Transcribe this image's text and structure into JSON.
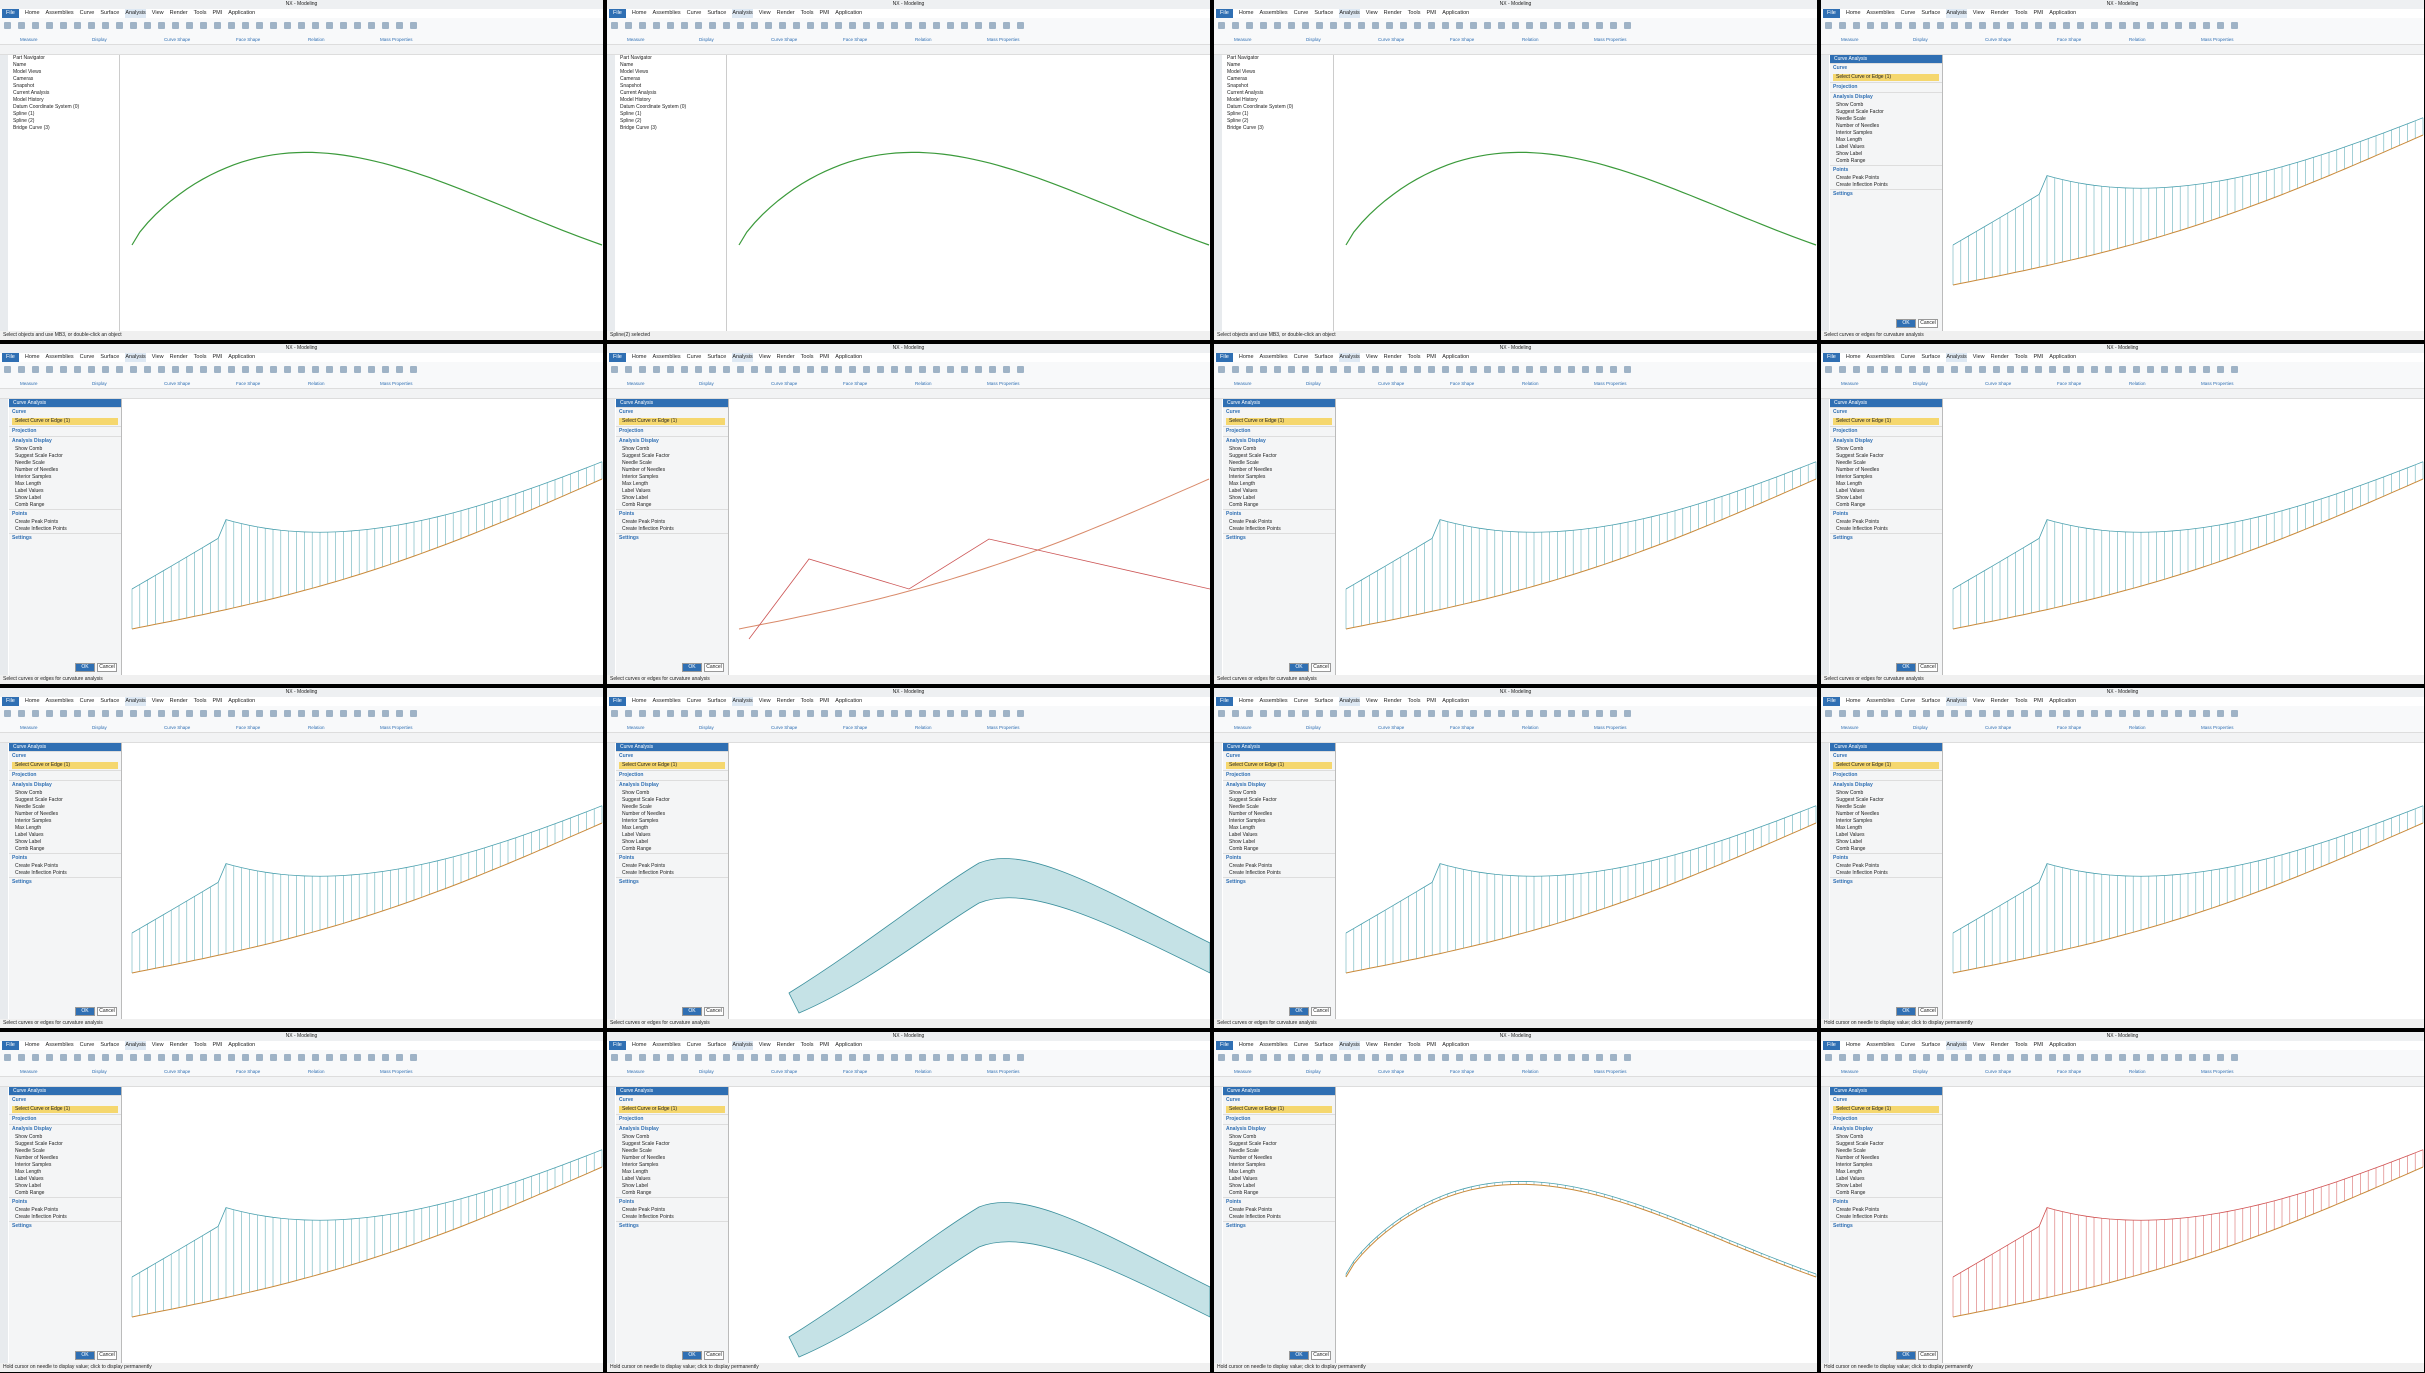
{
  "app_title": "NX - Modeling",
  "menu": [
    "File",
    "Home",
    "Assemblies",
    "Curve",
    "Surface",
    "Analysis",
    "View",
    "Render",
    "Tools",
    "PMI",
    "Application"
  ],
  "ribbon_groups": [
    "Measure",
    "Display",
    "Curve Shape",
    "Face Shape",
    "Relation",
    "Mass Properties"
  ],
  "navigator": {
    "title": "Part Navigator",
    "items": [
      "Name",
      "Model Views",
      "Cameras",
      "Snapshot",
      "Current Analysis",
      "Model History",
      "Datum Coordinate System (0)",
      "Spline (1)",
      "Spline (2)",
      "Bridge Curve (3)"
    ]
  },
  "dialog": {
    "title": "Curve Analysis",
    "sections": [
      "Curve",
      "Projection",
      "Analysis Display",
      "Points",
      "Settings"
    ],
    "select_label": "Select Curve or Edge (1)",
    "options": [
      "Show Comb",
      "Suggest Scale Factor",
      "Needle Scale",
      "Number of Needles",
      "Interior Samples",
      "Max Length",
      "Label Values",
      "Show Label",
      "Comb Range",
      "Create Peak Points",
      "Create Inflection Points"
    ],
    "ok": "OK",
    "cancel": "Cancel"
  },
  "panels": [
    {
      "view": "navigator",
      "curve": "plain",
      "status": "Select objects and use MB3, or double-click an object"
    },
    {
      "view": "navigator",
      "curve": "plain",
      "status": "Spline(2) selected"
    },
    {
      "view": "navigator",
      "curve": "plain",
      "status": "Select objects and use MB3, or double-click an object"
    },
    {
      "view": "dialog",
      "curve": "comb",
      "status": "Select curves or edges for curvature analysis"
    },
    {
      "view": "dialog",
      "curve": "comb",
      "status": "Select curves or edges for curvature analysis"
    },
    {
      "view": "dialog",
      "curve": "poly",
      "status": "Select curves or edges for curvature analysis"
    },
    {
      "view": "dialog",
      "curve": "comb",
      "status": "Select curves or edges for curvature analysis"
    },
    {
      "view": "dialog",
      "curve": "comb",
      "status": "Select curves or edges for curvature analysis"
    },
    {
      "view": "dialog",
      "curve": "comb",
      "status": "Select curves or edges for curvature analysis"
    },
    {
      "view": "dialog",
      "curve": "ribbon",
      "status": "Select curves or edges for curvature analysis"
    },
    {
      "view": "dialog",
      "curve": "comb",
      "status": "Select curves or edges for curvature analysis"
    },
    {
      "view": "dialog",
      "curve": "comb",
      "status": "Hold cursor on needle to display value; click to display permanently"
    },
    {
      "view": "dialog",
      "curve": "comb",
      "status": "Hold cursor on needle to display value; click to display permanently"
    },
    {
      "view": "dialog",
      "curve": "twist",
      "status": "Hold cursor on needle to display value; click to display permanently"
    },
    {
      "view": "dialog",
      "curve": "thin",
      "status": "Hold cursor on needle to display value; click to display permanently"
    },
    {
      "view": "dialog",
      "curve": "red",
      "status": "Hold cursor on needle to display value; click to display permanently"
    }
  ]
}
